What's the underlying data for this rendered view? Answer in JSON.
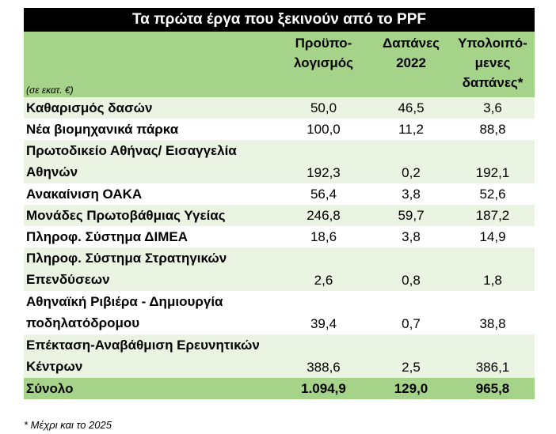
{
  "title": "Τα πρώτα έργα που ξεκινούν από το PPF",
  "unit_note": "(σε εκατ. €)",
  "columns": [
    "Προϋπο-\nλογισμός",
    "Δαπάνες\n2022",
    "Υπολοιπό-\nμενες\nδαπάνες*"
  ],
  "rows": [
    {
      "name": "Καθαρισμός δασών",
      "v1": "50,0",
      "v2": "46,5",
      "v3": "3,6"
    },
    {
      "name": "Νέα βιομηχανικά πάρκα",
      "v1": "100,0",
      "v2": "11,2",
      "v3": "88,8"
    },
    {
      "name": "Πρωτοδικείο Αθήνας/ Εισαγγελία Αθηνών",
      "v1": "192,3",
      "v2": "0,2",
      "v3": "192,1"
    },
    {
      "name": "Ανακαίνιση ΟΑΚΑ",
      "v1": "56,4",
      "v2": "3,8",
      "v3": "52,6"
    },
    {
      "name": "Μονάδες Πρωτοβάθμιας Υγείας",
      "v1": "246,8",
      "v2": "59,7",
      "v3": "187,2"
    },
    {
      "name": "Πληροφ. Σύστημα ΔΙΜΕΑ",
      "v1": "18,6",
      "v2": "3,8",
      "v3": "14,9"
    },
    {
      "name": "Πληροφ. Σύστημα Στρατηγικών Επενδύσεων",
      "v1": "2,6",
      "v2": "0,8",
      "v3": "1,8"
    },
    {
      "name": "Αθηναϊκή Ριβιέρα - Δημιουργία ποδηλατόδρομου",
      "v1": "39,4",
      "v2": "0,7",
      "v3": "38,8"
    },
    {
      "name": "Επέκταση-Αναβάθμιση Ερευνητικών Κέντρων",
      "v1": "388,6",
      "v2": "2,5",
      "v3": "386,1"
    }
  ],
  "total": {
    "name": "Σύνολο",
    "v1": "1.094,9",
    "v2": "129,0",
    "v3": "965,8"
  },
  "footnote": "* Μέχρι και το 2025"
}
